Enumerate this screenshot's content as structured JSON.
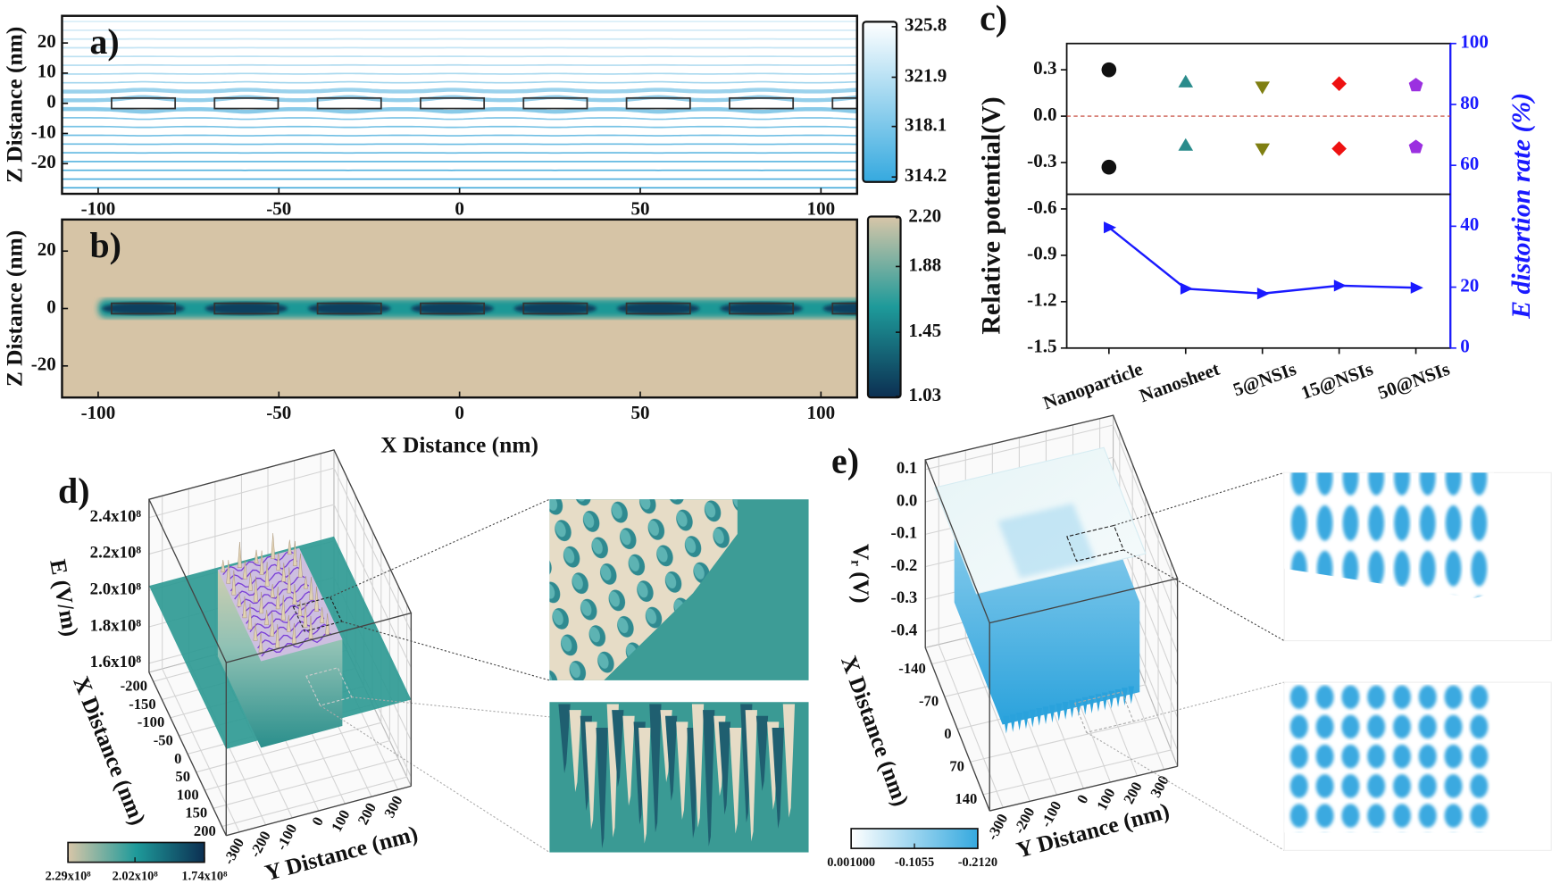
{
  "chart_data": [
    {
      "type": "contour",
      "panel_label": "a)",
      "ylabel": "Z Distance (nm)",
      "xlim": [
        -110,
        110
      ],
      "ylim": [
        -30,
        29
      ],
      "xticks": [
        -100,
        -50,
        0,
        50,
        100
      ],
      "yticks": [
        -20,
        -10,
        0,
        10,
        20
      ],
      "color": "#3aa6d9",
      "colorbar": {
        "lim": [
          314.2,
          325.8
        ],
        "ticks": [
          325.8,
          321.9,
          318.1,
          314.2
        ],
        "colors": [
          "#35a9df",
          "#ffffff"
        ]
      }
    },
    {
      "type": "heatmap",
      "panel_label": "b)",
      "ylabel": "Z Distance (nm)",
      "xlabel": "X Distance (nm)",
      "xlim": [
        -110,
        110
      ],
      "ylim": [
        -31,
        31
      ],
      "xticks": [
        -100,
        -50,
        0,
        50,
        100
      ],
      "yticks": [
        -20,
        0,
        20
      ],
      "background": "#d6c4a6",
      "color": "#1f9896",
      "colorbar": {
        "lim": [
          1.03,
          2.2
        ],
        "ticks": [
          {
            "value": 2.2,
            "label": "2.20"
          },
          1.88,
          1.45,
          1.03
        ],
        "colors": [
          "#0c2f52",
          "#1e9a9a",
          "#d8c6a8"
        ]
      }
    },
    {
      "type": "scatter",
      "panel_label": "c)",
      "categories": [
        "Nanoparticle",
        "Nanosheet",
        "5@NSIs",
        "15@NSIs",
        "50@NSIs"
      ],
      "ylabel": "Relative potential(V)",
      "y2label": "E distortion rate (%)",
      "ylim": [
        -1.5,
        0.47
      ],
      "yticks": [
        0.3,
        {
          "value": 0,
          "label": "0.0"
        },
        -0.3,
        -0.6,
        -0.9,
        -1.2,
        -1.5
      ],
      "y2lim": [
        0,
        100
      ],
      "y2ticks": [
        0,
        20,
        40,
        60,
        80,
        100
      ],
      "y2color": "#1a1aff",
      "hline": 0,
      "hline_color": "#c0392b",
      "markers": [
        "circle",
        "triangle-up",
        "triangle-down",
        "diamond",
        "pentagon"
      ],
      "marker_colors": [
        "#111111",
        "#2a8c8c",
        "#7f7f12",
        "#ee1111",
        "#9b30e0"
      ],
      "series": [
        {
          "values": [
            0.3,
            0.22,
            0.19,
            0.21,
            0.2
          ]
        },
        {
          "values": [
            -0.33,
            -0.19,
            -0.21,
            -0.21,
            -0.2
          ]
        },
        {
          "values": [
            39.6,
            19.5,
            17.9,
            20.5,
            19.8
          ],
          "axis": "y2",
          "color": "#1a1aff"
        }
      ]
    },
    {
      "type": "surface3d",
      "panel_label": "d)",
      "zlabel": "E (V/m)",
      "xlabel": "X Distance (nm)",
      "ylabel": "Y Distance (nm)",
      "xlim": [
        -225,
        225
      ],
      "ylim": [
        -350,
        350
      ],
      "zlim": [
        155000000,
        250000000
      ],
      "xticks": [
        -200,
        -150,
        -100,
        -50,
        0,
        50,
        100,
        150,
        200
      ],
      "yticks": [
        -300,
        -200,
        -100,
        0,
        100,
        200,
        300
      ],
      "zticks": [
        {
          "value": 240000000,
          "label": "2.4x10⁸"
        },
        {
          "value": 220000000,
          "label": "2.2x10⁸"
        },
        {
          "value": 200000000,
          "label": "2.0x10⁸"
        },
        {
          "value": 180000000,
          "label": "1.8x10⁸"
        },
        {
          "value": 160000000,
          "label": "1.6x10⁸"
        }
      ],
      "colorbar": {
        "lim": [
          174000000,
          229000000
        ],
        "ticks": [
          {
            "value": 229000000,
            "label": "2.29x10⁸"
          },
          {
            "value": 202000000,
            "label": "2.02x10⁸"
          },
          {
            "value": 174000000,
            "label": "1.74x10⁸"
          }
        ],
        "colors": [
          "#d8c6a8",
          "#1e9a9a",
          "#0c2f52"
        ]
      }
    },
    {
      "type": "surface3d",
      "panel_label": "e)",
      "zlabel": "Vᵣ (V)",
      "xlabel": "X Distance (nm)",
      "ylabel": "Y Distance (nm)",
      "xlim": [
        -175,
        175
      ],
      "ylim": [
        -350,
        350
      ],
      "zlim": [
        -0.45,
        0.13
      ],
      "xticks": [
        -140,
        -70,
        0,
        70,
        140
      ],
      "yticks": [
        -300,
        -200,
        -100,
        0,
        100,
        200,
        300
      ],
      "zticks": [
        0.1,
        {
          "value": 0,
          "label": "0.0"
        },
        -0.1,
        -0.2,
        -0.3,
        -0.4
      ],
      "colorbar": {
        "lim": [
          -0.212,
          0.001
        ],
        "ticks": [
          {
            "value": 0.001,
            "label": "0.001000"
          },
          -0.1055,
          {
            "value": -0.212,
            "label": "-0.2120"
          }
        ],
        "colors": [
          "#ffffff",
          "#35a9df"
        ]
      }
    }
  ]
}
